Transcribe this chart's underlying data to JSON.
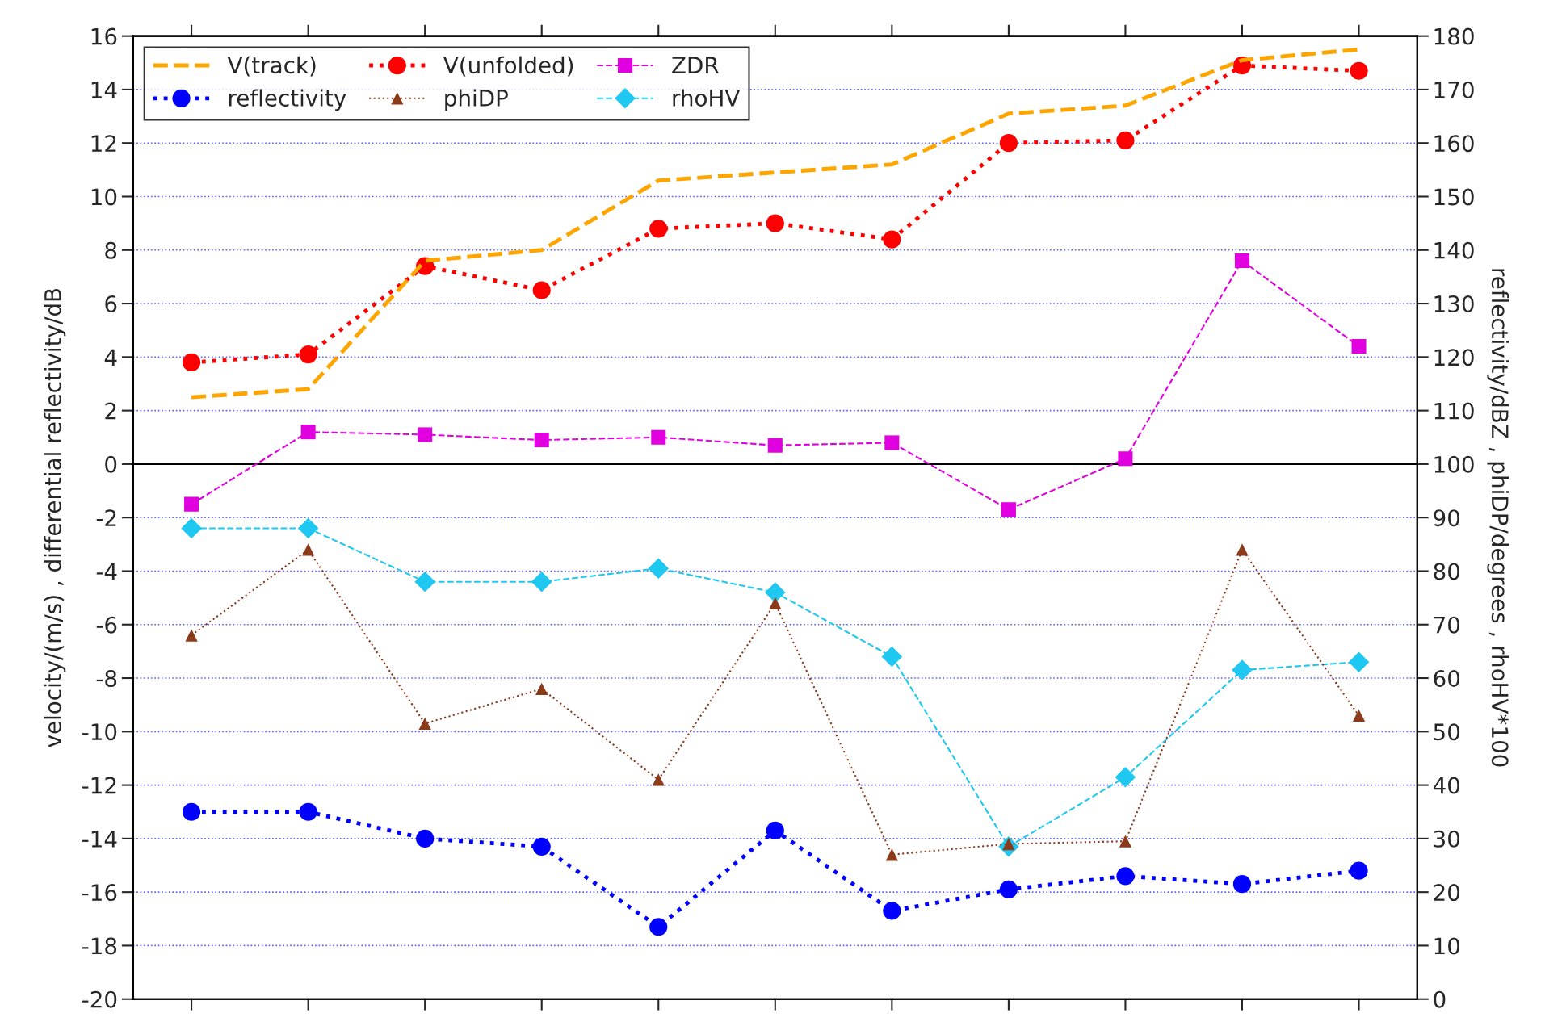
{
  "chart_data": {
    "type": "line",
    "ylabel": "velocity/(m/s) , differential reflectivity/dB",
    "y2label": "reflectivity/dBZ , phiDP/degrees , rhoHV*100",
    "categories": [
      null,
      null,
      null,
      null,
      null,
      null,
      null,
      null,
      null,
      null,
      null
    ],
    "ylim": [
      -20,
      16
    ],
    "yticks": [
      -20,
      -18,
      -16,
      -14,
      -12,
      -10,
      -8,
      -6,
      -4,
      -2,
      0,
      2,
      4,
      6,
      8,
      10,
      12,
      14,
      16
    ],
    "y2lim": [
      0,
      180
    ],
    "y2ticks": [
      0,
      10,
      20,
      30,
      40,
      50,
      60,
      70,
      80,
      90,
      100,
      110,
      120,
      130,
      140,
      150,
      160,
      170,
      180
    ],
    "tick_labels": "y",
    "grid": "y",
    "legend": "top left",
    "ref_lines": [
      {
        "axis": "y",
        "value": 0,
        "color": "#000000",
        "line_style": "solid"
      }
    ],
    "series": [
      {
        "name": "V(track)",
        "color": "#ffa500",
        "marker": "none",
        "line_style": "dashed",
        "values": [
          2.5,
          2.8,
          7.6,
          8.0,
          10.6,
          10.9,
          11.2,
          13.1,
          13.4,
          15.1,
          15.5
        ]
      },
      {
        "name": "V(unfolded)",
        "color": "#ff0000",
        "marker": "circle",
        "line_style": "dotted",
        "values": [
          3.8,
          4.1,
          7.4,
          6.5,
          8.8,
          9.0,
          8.4,
          12.0,
          12.1,
          14.9,
          14.7
        ]
      },
      {
        "name": "ZDR",
        "color": "#e000e0",
        "marker": "square",
        "line_style": "dashed",
        "values": [
          -1.5,
          1.2,
          1.1,
          0.9,
          1.0,
          0.7,
          0.8,
          -1.7,
          0.2,
          7.6,
          4.4
        ]
      },
      {
        "name": "reflectivity",
        "color": "#0000ff",
        "marker": "circle",
        "line_style": "dotted",
        "axis": "y2",
        "values": [
          35,
          35,
          30,
          28.5,
          13.5,
          31.5,
          16.5,
          20.5,
          23,
          21.5,
          24
        ]
      },
      {
        "name": "phiDP",
        "color": "#8b3a1a",
        "marker": "triangle",
        "line_style": "dotted",
        "axis": "y2",
        "values": [
          68,
          84,
          51.5,
          58,
          41,
          74,
          27,
          29,
          29.5,
          84,
          53
        ]
      },
      {
        "name": "rhoHV",
        "color": "#1ec8f0",
        "marker": "diamond",
        "line_style": "dashed",
        "axis": "y2",
        "values": [
          88,
          88,
          78,
          78,
          80.5,
          76,
          64,
          28.5,
          41.5,
          61.5,
          63
        ]
      }
    ]
  }
}
